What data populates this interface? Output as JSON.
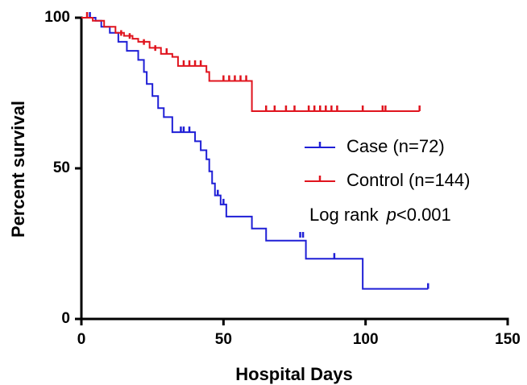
{
  "chart_data": {
    "type": "step",
    "xlabel": "Hospital Days",
    "ylabel": "Percent survival",
    "xlim": [
      0,
      150
    ],
    "xticks": [
      0,
      50,
      100,
      150
    ],
    "ylim": [
      0,
      100
    ],
    "yticks": [
      0,
      50,
      100
    ],
    "series": [
      {
        "name": "Case (n=72)",
        "color": "#1f1fd6",
        "x": [
          0,
          5,
          7,
          10,
          13,
          16,
          20,
          22,
          23,
          25,
          27,
          29,
          32,
          40,
          42,
          44,
          45,
          46,
          47,
          49,
          51,
          60,
          65,
          79,
          99,
          122
        ],
        "values": [
          100,
          99,
          97,
          95,
          92,
          89,
          86,
          82,
          78,
          74,
          70,
          67,
          62,
          59,
          56,
          53,
          49,
          45,
          41,
          38,
          34,
          30,
          26,
          20,
          10,
          10
        ],
        "censored": {
          "x": [
            3,
            35,
            36,
            38,
            48,
            50,
            77,
            78,
            89,
            122
          ],
          "values": [
            100,
            62,
            62,
            62,
            41,
            38,
            27,
            27,
            20,
            10
          ]
        }
      },
      {
        "name": "Control (n=144)",
        "color": "#e0141e",
        "x": [
          0,
          4,
          8,
          12,
          15,
          18,
          20,
          24,
          28,
          32,
          34,
          44,
          45,
          60,
          119
        ],
        "values": [
          100,
          99,
          97,
          95,
          94,
          93,
          92,
          90,
          88,
          87,
          84,
          82,
          79,
          69,
          69
        ],
        "censored": {
          "x": [
            2,
            14,
            17,
            22,
            26,
            30,
            36,
            38,
            40,
            42,
            50,
            52,
            54,
            56,
            58,
            65,
            68,
            72,
            75,
            80,
            82,
            84,
            86,
            88,
            90,
            99,
            106,
            107,
            119
          ],
          "values": [
            100,
            94,
            93,
            91,
            89,
            88,
            84,
            84,
            84,
            84,
            79,
            79,
            79,
            79,
            79,
            69,
            69,
            69,
            69,
            69,
            69,
            69,
            69,
            69,
            69,
            69,
            69,
            69,
            69
          ]
        }
      }
    ],
    "annotation": [
      "Log rank",
      "p",
      "<0.001"
    ]
  }
}
